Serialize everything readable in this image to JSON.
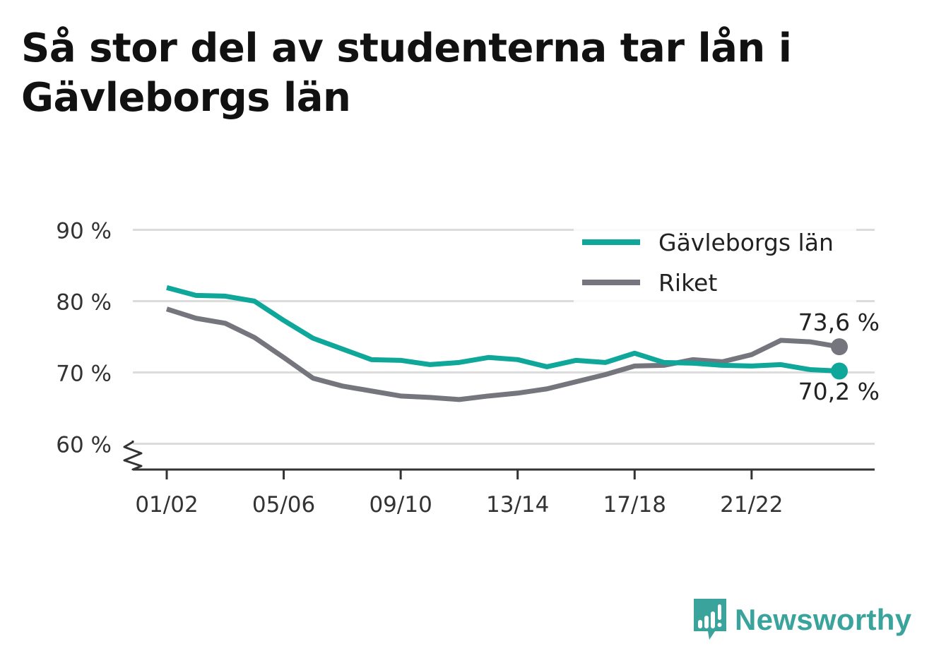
{
  "title": "Så stor del av studenterna tar lån i Gävleborgs län",
  "brand": {
    "name": "Newsworthy"
  },
  "colors": {
    "gavleborg": "#0ea79a",
    "riket": "#75757d",
    "grid": "#dcdcdc",
    "axis": "#333333",
    "text": "#333333"
  },
  "chart_data": {
    "type": "line",
    "title": "Så stor del av studenterna tar lån i Gävleborgs län",
    "xlabel": "",
    "ylabel": "",
    "ylim": [
      56.5,
      90
    ],
    "y_ticks": [
      {
        "value": 90,
        "label": "90 %"
      },
      {
        "value": 80,
        "label": "80 %"
      },
      {
        "value": 70,
        "label": "70 %"
      },
      {
        "value": 60,
        "label": "60 %"
      }
    ],
    "axis_break": true,
    "grid": true,
    "legend": "top-right",
    "x": [
      "01/02",
      "02/03",
      "03/04",
      "04/05",
      "05/06",
      "06/07",
      "07/08",
      "08/09",
      "09/10",
      "10/11",
      "11/12",
      "12/13",
      "13/14",
      "14/15",
      "15/16",
      "16/17",
      "17/18",
      "18/19",
      "19/20",
      "20/21",
      "21/22",
      "22/23",
      "23/24",
      "24/25"
    ],
    "x_ticks": [
      "01/02",
      "05/06",
      "09/10",
      "13/14",
      "17/18",
      "21/22"
    ],
    "series": [
      {
        "name": "Gävleborgs län",
        "color": "#0ea79a",
        "values": [
          81.9,
          80.8,
          80.7,
          80.0,
          77.3,
          74.8,
          73.3,
          71.8,
          71.7,
          71.1,
          71.4,
          72.1,
          71.8,
          70.8,
          71.7,
          71.4,
          72.7,
          71.4,
          71.3,
          71.0,
          70.9,
          71.1,
          70.4,
          70.2
        ],
        "end_label": "70,2 %"
      },
      {
        "name": "Riket",
        "color": "#75757d",
        "values": [
          78.9,
          77.6,
          76.9,
          74.9,
          72.1,
          69.2,
          68.1,
          67.4,
          66.7,
          66.5,
          66.2,
          66.7,
          67.1,
          67.7,
          68.7,
          69.7,
          70.9,
          71.0,
          71.8,
          71.5,
          72.5,
          74.5,
          74.3,
          73.6
        ],
        "end_label": "73,6 %"
      }
    ]
  }
}
